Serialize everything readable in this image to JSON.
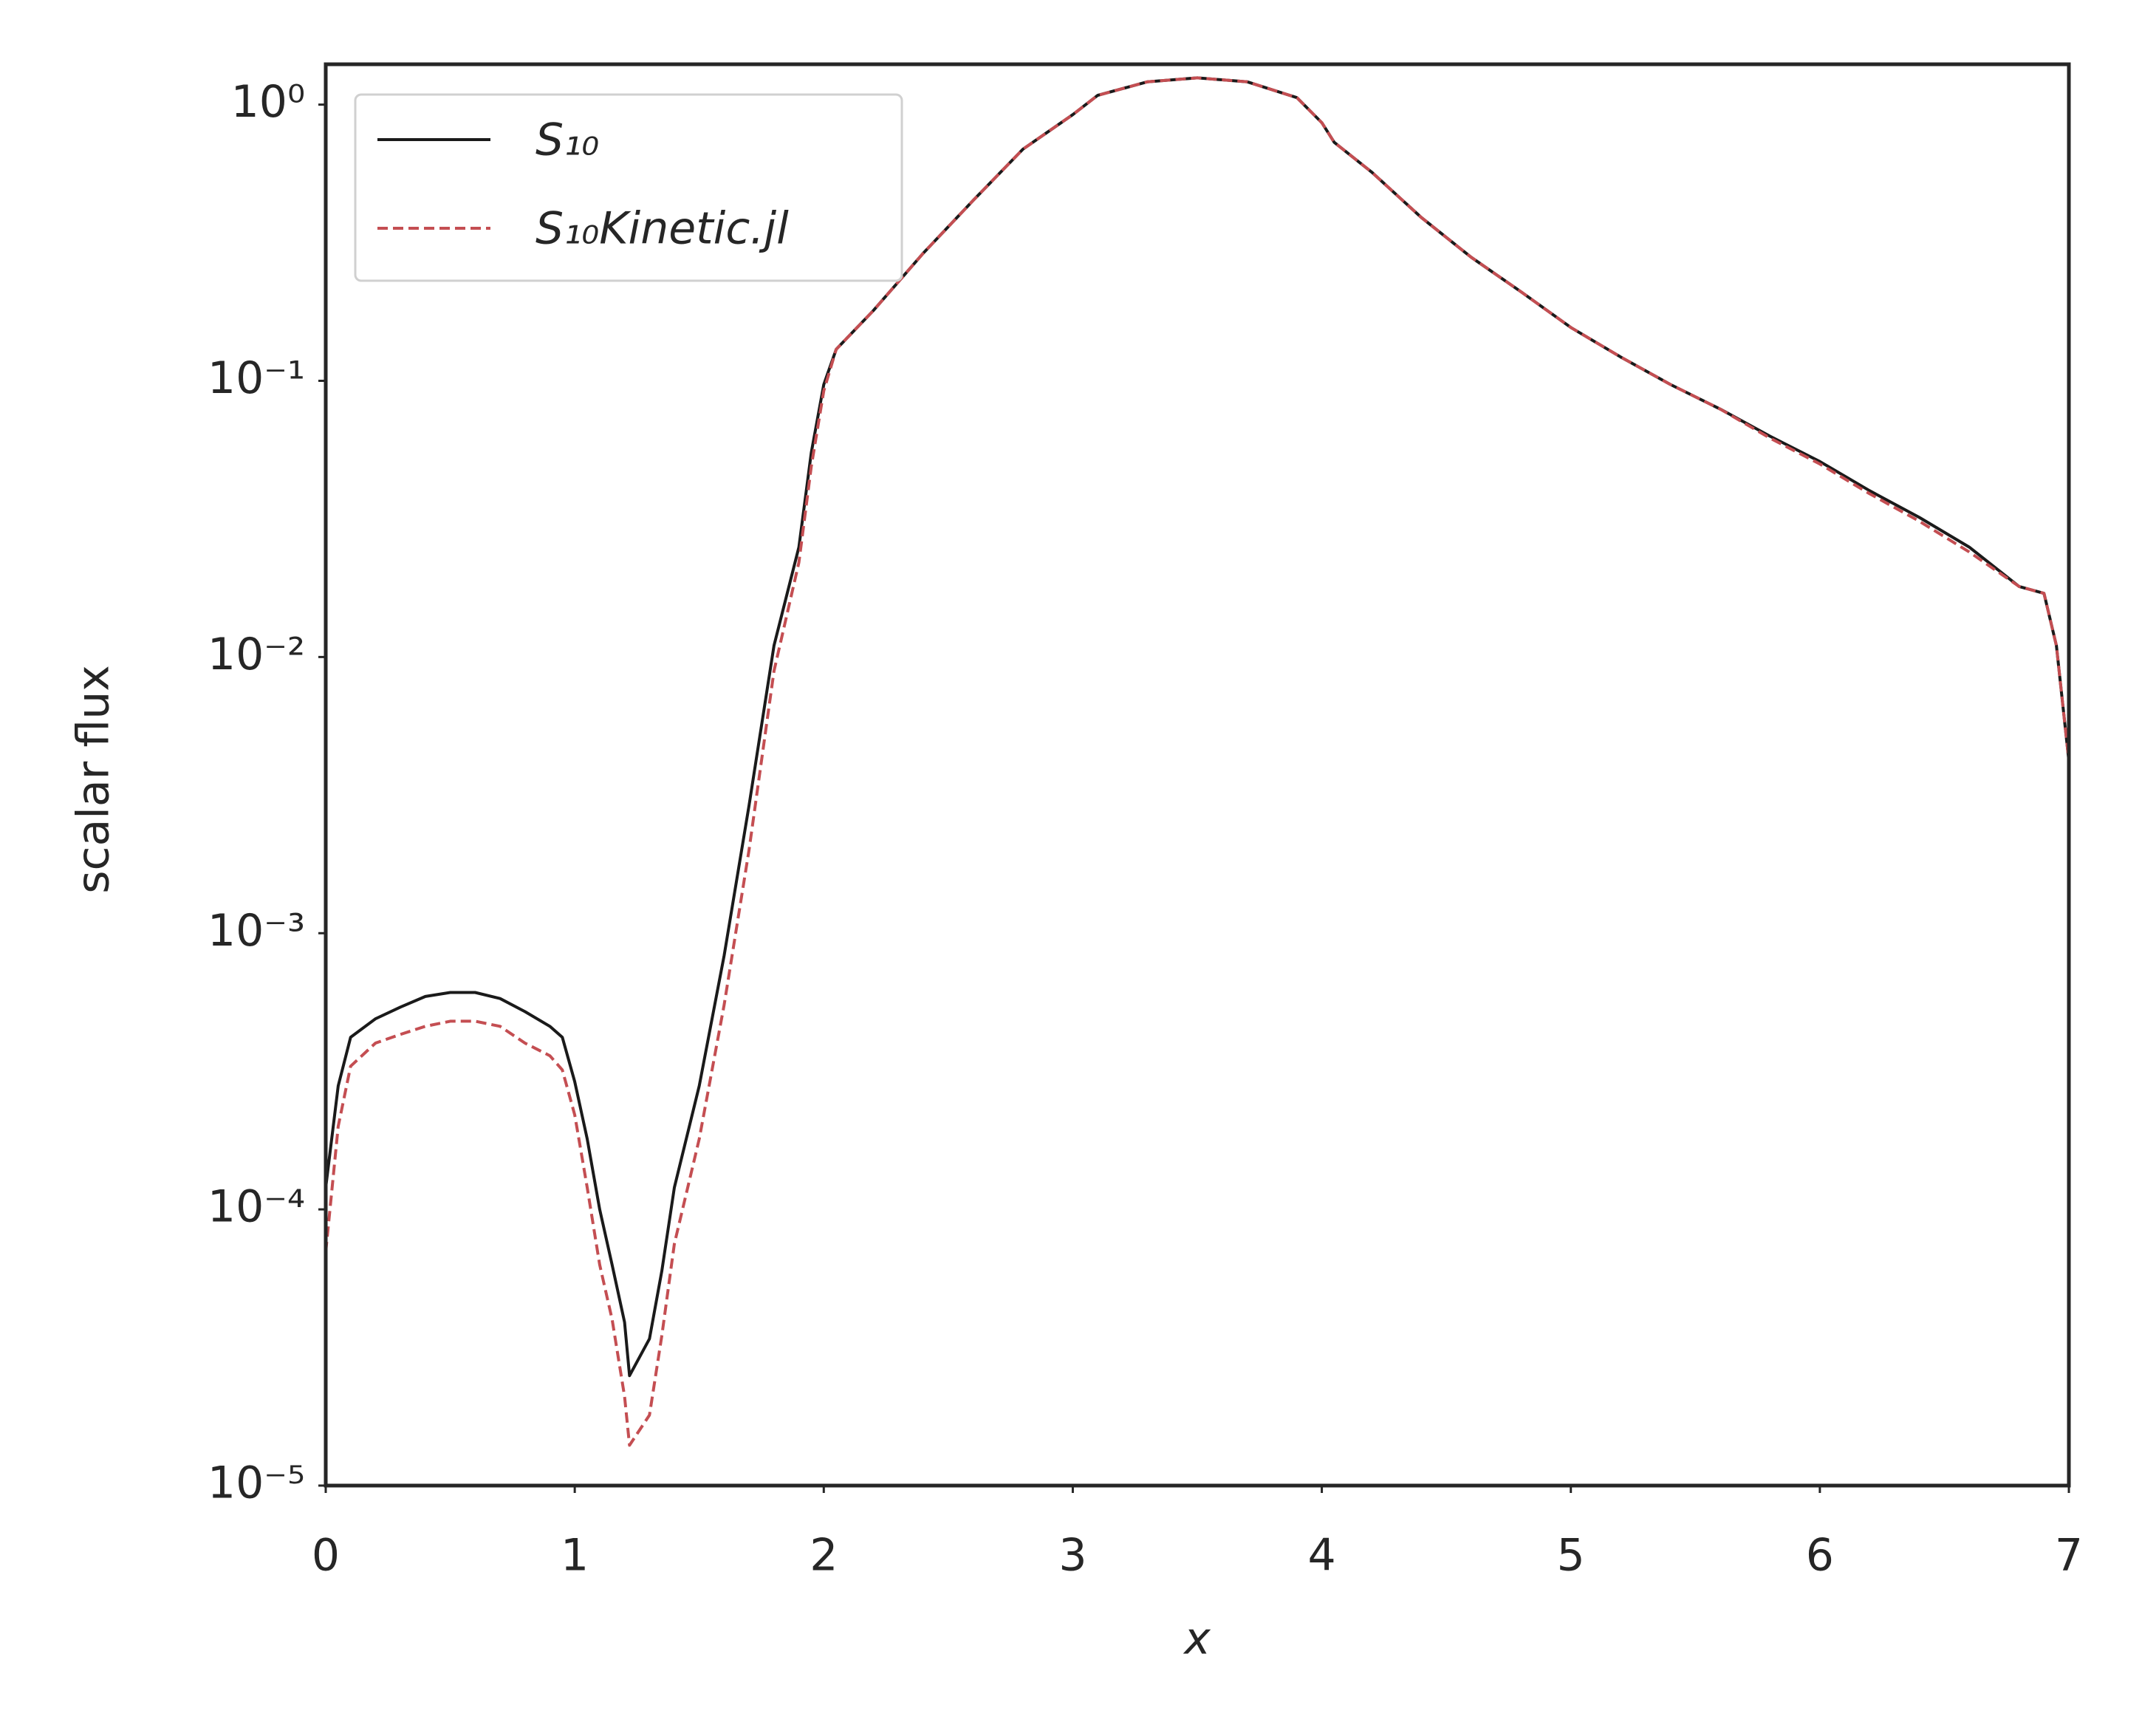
{
  "chart_data": {
    "type": "line",
    "xlabel": "x",
    "ylabel": "scalar flux",
    "yscale": "log",
    "grid": false,
    "legend_loc": "upper left",
    "xlim": [
      0,
      7
    ],
    "ylim": [
      1e-05,
      1.4
    ],
    "xticks": [
      0,
      1,
      2,
      3,
      4,
      5,
      6,
      7
    ],
    "yticks": [
      {
        "value": 1,
        "label": "10⁰"
      },
      {
        "value": 0.1,
        "label": "10⁻¹"
      },
      {
        "value": 0.01,
        "label": "10⁻²"
      },
      {
        "value": 0.001,
        "label": "10⁻³"
      },
      {
        "value": 0.0001,
        "label": "10⁻⁴"
      },
      {
        "value": 1e-05,
        "label": "10⁻⁵"
      }
    ],
    "x": [
      0,
      0.05,
      0.1,
      0.2,
      0.3,
      0.4,
      0.5,
      0.6,
      0.7,
      0.8,
      0.9,
      0.95,
      1.0,
      1.05,
      1.1,
      1.15,
      1.2,
      1.22,
      1.3,
      1.35,
      1.4,
      1.5,
      1.6,
      1.7,
      1.8,
      1.9,
      1.95,
      2.0,
      2.05,
      2.2,
      2.4,
      2.6,
      2.8,
      3.0,
      3.1,
      3.3,
      3.5,
      3.7,
      3.9,
      4.0,
      4.05,
      4.2,
      4.4,
      4.6,
      4.8,
      5.0,
      5.2,
      5.4,
      5.6,
      5.8,
      6.0,
      6.2,
      6.4,
      6.6,
      6.8,
      6.9,
      6.95,
      7.0
    ],
    "series": [
      {
        "name": "S₁₀",
        "color": "#1a1a1a",
        "linestyle": "solid",
        "values": [
          0.00012,
          0.00028,
          0.00042,
          0.00049,
          0.00054,
          0.00059,
          0.00061,
          0.00061,
          0.00058,
          0.00052,
          0.00046,
          0.00042,
          0.00029,
          0.00018,
          0.0001,
          6.3e-05,
          3.9e-05,
          2.5e-05,
          3.4e-05,
          6e-05,
          0.00012,
          0.00028,
          0.00083,
          0.0029,
          0.011,
          0.025,
          0.055,
          0.097,
          0.13,
          0.18,
          0.29,
          0.45,
          0.69,
          0.92,
          1.08,
          1.21,
          1.25,
          1.21,
          1.06,
          0.86,
          0.73,
          0.57,
          0.39,
          0.28,
          0.21,
          0.156,
          0.122,
          0.097,
          0.079,
          0.063,
          0.051,
          0.04,
          0.032,
          0.025,
          0.018,
          0.017,
          0.011,
          0.0042
        ]
      },
      {
        "name": "S₁₀Kinetic.jl",
        "color": "#c44e52",
        "linestyle": "dashed",
        "values": [
          7e-05,
          0.0002,
          0.00033,
          0.0004,
          0.00043,
          0.00046,
          0.00048,
          0.00048,
          0.00046,
          0.0004,
          0.00036,
          0.00032,
          0.00022,
          0.00012,
          6.3e-05,
          4e-05,
          2.1e-05,
          1.4e-05,
          1.8e-05,
          3.5e-05,
          7.5e-05,
          0.00018,
          0.00055,
          0.002,
          0.0089,
          0.022,
          0.049,
          0.092,
          0.13,
          0.18,
          0.29,
          0.45,
          0.69,
          0.92,
          1.08,
          1.21,
          1.25,
          1.21,
          1.06,
          0.86,
          0.73,
          0.57,
          0.39,
          0.28,
          0.21,
          0.156,
          0.122,
          0.097,
          0.079,
          0.062,
          0.05,
          0.039,
          0.031,
          0.024,
          0.018,
          0.017,
          0.011,
          0.0042
        ]
      }
    ]
  }
}
